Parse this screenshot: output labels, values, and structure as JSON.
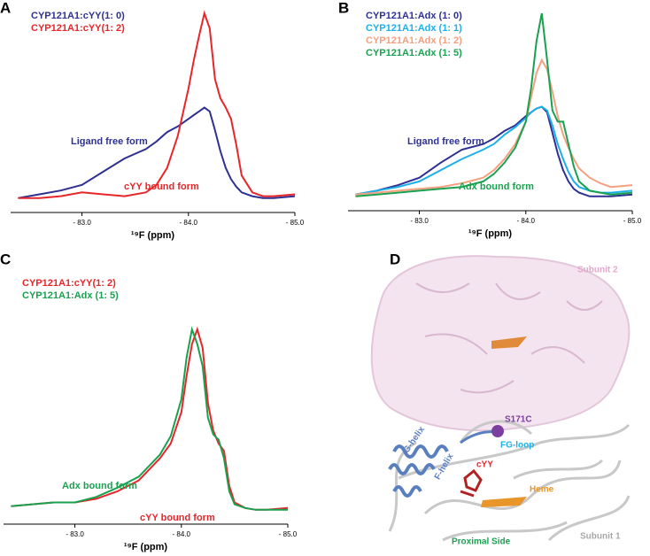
{
  "chart_data": [
    {
      "type": "line",
      "panel": "A",
      "xlabel": "¹⁹F (ppm)",
      "x": [
        -82.4,
        -82.6,
        -82.8,
        -83.0,
        -83.2,
        -83.4,
        -83.6,
        -83.7,
        -83.8,
        -83.9,
        -84.0,
        -84.05,
        -84.1,
        -84.15,
        -84.2,
        -84.25,
        -84.3,
        -84.35,
        -84.4,
        -84.45,
        -84.5,
        -84.6,
        -84.7,
        -84.8,
        -85.0
      ],
      "series": [
        {
          "name": "CYP121A1:cYY(1: 0)",
          "color": "#2e3192",
          "values": [
            2,
            4,
            6,
            9,
            16,
            23,
            28,
            32,
            37,
            40,
            44,
            46,
            48,
            50,
            48,
            38,
            27,
            18,
            12,
            8,
            5,
            3,
            2,
            2,
            3
          ]
        },
        {
          "name": "CYP121A1:cYY(1: 2)",
          "color": "#e8262a",
          "values": [
            2,
            2,
            3,
            5,
            4,
            3,
            5,
            9,
            18,
            35,
            60,
            75,
            88,
            100,
            92,
            65,
            55,
            50,
            44,
            30,
            14,
            5,
            3,
            3,
            4
          ]
        }
      ],
      "annotations": [
        {
          "text": "Ligand free form",
          "color": "#2e3192"
        },
        {
          "text": "cYY bound form",
          "color": "#e8262a"
        }
      ],
      "xlim": [
        -82.33,
        -85.0
      ],
      "ylim": [
        0,
        100
      ],
      "xticks": [
        {
          "value": -83.0,
          "label": "- 83.0"
        },
        {
          "value": -84.0,
          "label": "- 84.0"
        },
        {
          "value": -85.0,
          "label": "- 85.0"
        }
      ]
    },
    {
      "type": "line",
      "panel": "B",
      "xlabel": "¹⁹F (ppm)",
      "x": [
        -82.4,
        -82.6,
        -82.8,
        -83.0,
        -83.2,
        -83.4,
        -83.6,
        -83.7,
        -83.8,
        -83.9,
        -84.0,
        -84.05,
        -84.1,
        -84.15,
        -84.2,
        -84.25,
        -84.3,
        -84.35,
        -84.4,
        -84.45,
        -84.5,
        -84.6,
        -84.7,
        -84.8,
        -85.0
      ],
      "series": [
        {
          "name": "CYP121A1:Adx (1: 0)",
          "color": "#2e3192",
          "values": [
            3,
            5,
            8,
            12,
            20,
            27,
            30,
            33,
            37,
            40,
            45,
            47,
            49,
            50,
            47,
            36,
            25,
            16,
            10,
            6,
            4,
            2,
            2,
            2,
            3
          ]
        },
        {
          "name": "CYP121A1:Adx (1: 1)",
          "color": "#1cb0e8",
          "values": [
            3,
            5,
            7,
            10,
            16,
            22,
            27,
            30,
            35,
            39,
            44,
            47,
            49,
            50,
            48,
            40,
            30,
            22,
            15,
            10,
            7,
            5,
            4,
            4,
            5
          ]
        },
        {
          "name": "CYP121A1:Adx (1: 2)",
          "color": "#f4a081",
          "values": [
            3,
            4,
            5,
            6,
            7,
            9,
            12,
            16,
            22,
            30,
            42,
            55,
            68,
            75,
            70,
            58,
            45,
            35,
            28,
            22,
            17,
            12,
            9,
            7,
            8
          ]
        },
        {
          "name": "CYP121A1:Adx (1: 5)",
          "color": "#1aa150",
          "values": [
            2,
            3,
            4,
            5,
            6,
            7,
            10,
            14,
            20,
            28,
            42,
            60,
            85,
            100,
            75,
            48,
            42,
            42,
            30,
            18,
            10,
            5,
            4,
            3,
            4
          ]
        }
      ],
      "annotations": [
        {
          "text": "Ligand free form",
          "color": "#2e3192"
        },
        {
          "text": "Adx bound form",
          "color": "#1aa150"
        }
      ],
      "xlim": [
        -82.33,
        -85.0
      ],
      "ylim": [
        0,
        100
      ],
      "xticks": [
        {
          "value": -83.0,
          "label": "- 83.0"
        },
        {
          "value": -84.0,
          "label": "- 84.0"
        },
        {
          "value": -85.0,
          "label": "- 85.0"
        }
      ]
    },
    {
      "type": "line",
      "panel": "C",
      "xlabel": "¹⁹F (ppm)",
      "x": [
        -82.4,
        -82.6,
        -82.8,
        -83.0,
        -83.2,
        -83.4,
        -83.6,
        -83.7,
        -83.8,
        -83.9,
        -84.0,
        -84.05,
        -84.1,
        -84.15,
        -84.2,
        -84.25,
        -84.3,
        -84.35,
        -84.4,
        -84.45,
        -84.5,
        -84.6,
        -84.7,
        -84.8,
        -85.0
      ],
      "series": [
        {
          "name": "CYP121A1:cYY(1: 2)",
          "color": "#e8262a",
          "values": [
            4,
            5,
            6,
            6,
            8,
            12,
            18,
            24,
            30,
            38,
            55,
            75,
            92,
            100,
            90,
            60,
            45,
            38,
            34,
            15,
            6,
            3,
            2,
            2,
            3
          ]
        },
        {
          "name": "CYP121A1:Adx (1: 5)",
          "color": "#1aa150",
          "values": [
            4,
            5,
            6,
            6,
            9,
            14,
            20,
            26,
            32,
            42,
            62,
            85,
            100,
            92,
            80,
            52,
            43,
            40,
            30,
            12,
            5,
            3,
            2,
            2,
            2
          ]
        }
      ],
      "annotations": [
        {
          "text": "Adx bound form",
          "color": "#1aa150"
        },
        {
          "text": "cYY bound form",
          "color": "#e8262a"
        }
      ],
      "xlim": [
        -82.33,
        -85.0
      ],
      "ylim": [
        0,
        100
      ],
      "xticks": [
        {
          "value": -83.0,
          "label": "- 83.0"
        },
        {
          "value": -84.0,
          "label": "- 84.0"
        },
        {
          "value": -85.0,
          "label": "- 85.0"
        }
      ]
    }
  ],
  "panel_d": {
    "label": "D",
    "annotations": [
      "Subunit 2",
      "S171C",
      "G-helix",
      "F-helix",
      "FG-loop",
      "cYY",
      "Heme",
      "Proximal Side",
      "Subunit 1"
    ]
  }
}
